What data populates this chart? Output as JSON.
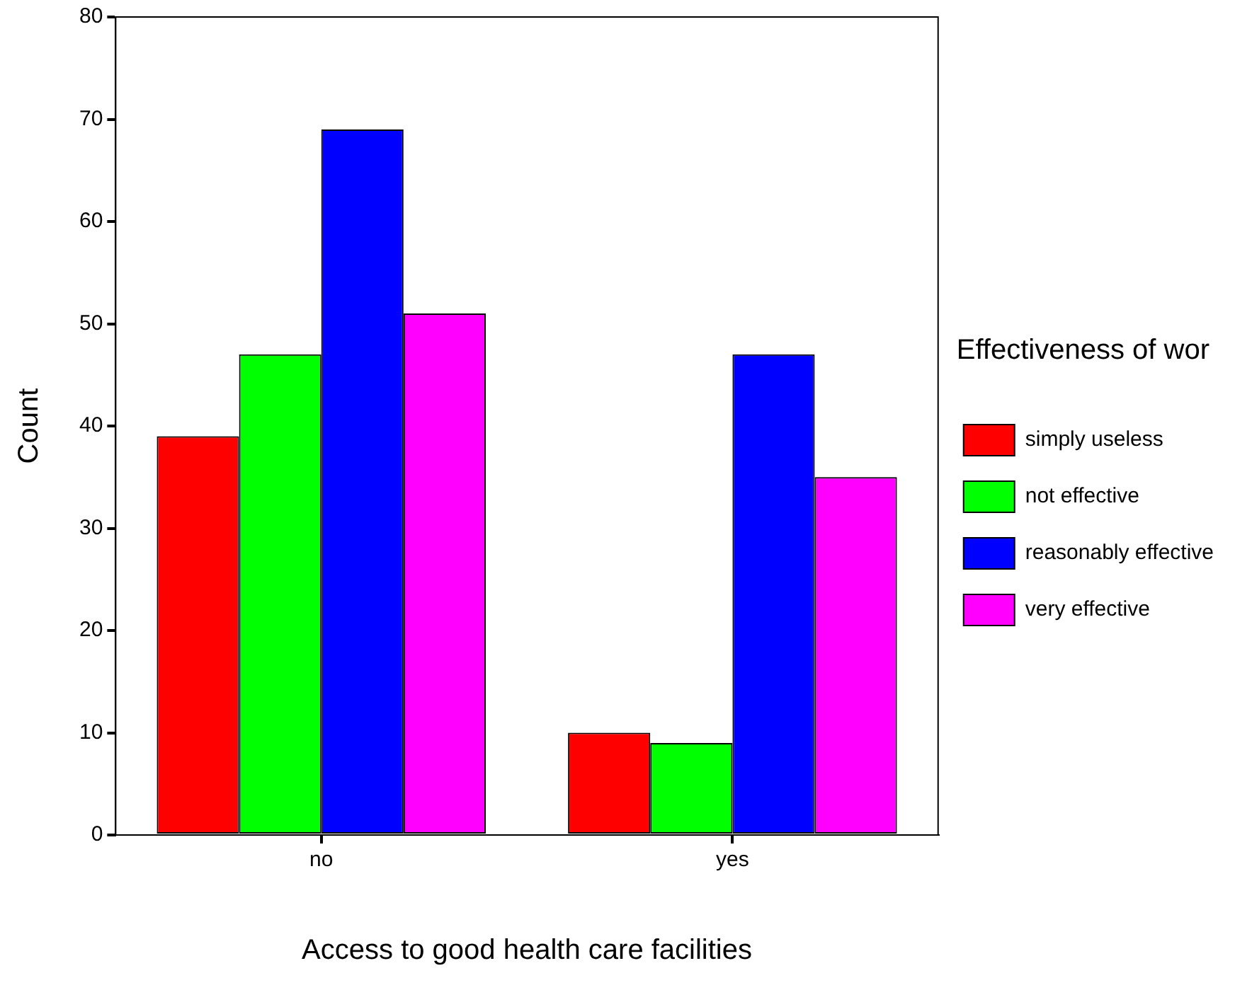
{
  "chart_data": {
    "type": "bar",
    "xlabel": "Access to good health care facilities",
    "ylabel": "Count",
    "legend_title": "Effectiveness of wor",
    "categories": [
      "no",
      "yes"
    ],
    "series": [
      {
        "name": "simply useless",
        "color": "#ff0000",
        "values": [
          39,
          10
        ]
      },
      {
        "name": "not effective",
        "color": "#00ff00",
        "values": [
          47,
          9
        ]
      },
      {
        "name": "reasonably effective",
        "color": "#0000ff",
        "values": [
          69,
          47
        ]
      },
      {
        "name": "very effective",
        "color": "#ff00ff",
        "values": [
          51,
          35
        ]
      }
    ],
    "ylim": [
      0,
      80
    ],
    "yticks": [
      0,
      10,
      20,
      30,
      40,
      50,
      60,
      70,
      80
    ],
    "grid": false,
    "legend": "right"
  }
}
